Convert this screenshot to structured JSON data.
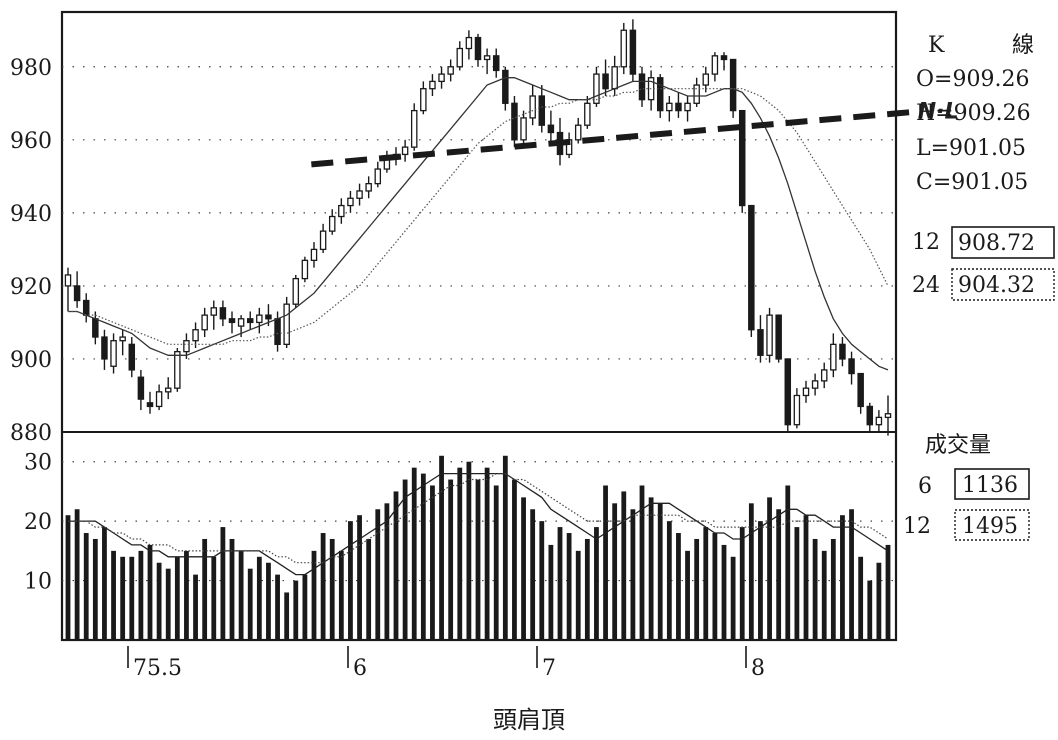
{
  "caption": "頭肩頂",
  "kline_panel": {
    "title_k": "K",
    "title_line": "線",
    "ohlc": [
      "O=909.26",
      "H=909.26",
      "L=901.05",
      "C=901.05"
    ],
    "ma": [
      {
        "period": "12",
        "value": "908.72",
        "box": "solid"
      },
      {
        "period": "24",
        "value": "904.32",
        "box": "dotted"
      }
    ],
    "neckline_label": "N·L"
  },
  "volume_panel": {
    "title": "成交量",
    "ma": [
      {
        "period": "6",
        "value": "1136",
        "box": "solid"
      },
      {
        "period": "12",
        "value": "1495",
        "box": "dotted"
      }
    ]
  },
  "chart_data": [
    {
      "type": "candlestick",
      "title": "",
      "ylim": [
        880,
        995
      ],
      "y_ticks": [
        "980",
        "960",
        "940",
        "920",
        "900",
        "880"
      ],
      "x_ticks": [
        "75.5",
        "6",
        "7",
        "8"
      ],
      "grid": true,
      "candles_ohlc": [
        [
          920,
          925,
          913,
          923
        ],
        [
          920,
          924,
          914,
          916
        ],
        [
          916,
          918,
          910,
          912
        ],
        [
          911,
          913,
          904,
          906
        ],
        [
          906,
          908,
          897,
          900
        ],
        [
          898,
          907,
          896,
          905
        ],
        [
          905,
          908,
          901,
          906
        ],
        [
          904,
          906,
          895,
          897
        ],
        [
          895,
          897,
          886,
          889
        ],
        [
          888,
          891,
          885,
          887
        ],
        [
          887,
          893,
          886,
          891
        ],
        [
          891,
          895,
          889,
          892
        ],
        [
          892,
          903,
          891,
          902
        ],
        [
          902,
          907,
          900,
          905
        ],
        [
          905,
          910,
          903,
          908
        ],
        [
          908,
          914,
          906,
          912
        ],
        [
          912,
          916,
          908,
          914
        ],
        [
          914,
          916,
          909,
          911
        ],
        [
          911,
          913,
          907,
          910
        ],
        [
          909,
          912,
          906,
          911
        ],
        [
          911,
          913,
          908,
          910
        ],
        [
          910,
          914,
          907,
          912
        ],
        [
          912,
          915,
          909,
          911
        ],
        [
          911,
          913,
          902,
          904
        ],
        [
          904,
          917,
          903,
          915
        ],
        [
          915,
          923,
          914,
          922
        ],
        [
          922,
          928,
          921,
          927
        ],
        [
          927,
          932,
          925,
          930
        ],
        [
          930,
          937,
          929,
          935
        ],
        [
          935,
          941,
          934,
          939
        ],
        [
          939,
          944,
          937,
          942
        ],
        [
          942,
          946,
          940,
          944
        ],
        [
          944,
          948,
          942,
          946
        ],
        [
          946,
          950,
          944,
          948
        ],
        [
          948,
          954,
          947,
          952
        ],
        [
          952,
          957,
          951,
          955
        ],
        [
          955,
          958,
          953,
          956
        ],
        [
          956,
          960,
          954,
          958
        ],
        [
          958,
          970,
          957,
          968
        ],
        [
          968,
          976,
          967,
          974
        ],
        [
          974,
          978,
          972,
          976
        ],
        [
          976,
          980,
          974,
          978
        ],
        [
          978,
          982,
          976,
          980
        ],
        [
          980,
          987,
          979,
          985
        ],
        [
          985,
          990,
          982,
          988
        ],
        [
          988,
          989,
          980,
          982
        ],
        [
          982,
          985,
          978,
          983
        ],
        [
          983,
          985,
          977,
          979
        ],
        [
          979,
          980,
          968,
          970
        ],
        [
          970,
          972,
          958,
          960
        ],
        [
          960,
          968,
          958,
          966
        ],
        [
          966,
          975,
          964,
          972
        ],
        [
          972,
          975,
          962,
          964
        ],
        [
          964,
          968,
          959,
          962
        ],
        [
          962,
          966,
          953,
          956
        ],
        [
          956,
          962,
          955,
          960
        ],
        [
          960,
          966,
          959,
          964
        ],
        [
          964,
          972,
          963,
          970
        ],
        [
          970,
          980,
          969,
          978
        ],
        [
          978,
          982,
          972,
          974
        ],
        [
          974,
          983,
          972,
          980
        ],
        [
          980,
          992,
          978,
          990
        ],
        [
          990,
          993,
          976,
          978
        ],
        [
          978,
          980,
          969,
          971
        ],
        [
          971,
          979,
          968,
          977
        ],
        [
          977,
          978,
          966,
          968
        ],
        [
          968,
          972,
          965,
          970
        ],
        [
          970,
          973,
          966,
          968
        ],
        [
          968,
          972,
          965,
          970
        ],
        [
          970,
          977,
          969,
          975
        ],
        [
          975,
          980,
          973,
          978
        ],
        [
          978,
          984,
          976,
          983
        ],
        [
          983,
          984,
          979,
          982
        ],
        [
          982,
          982,
          966,
          968
        ],
        [
          968,
          968,
          940,
          942
        ],
        [
          942,
          942,
          906,
          908
        ],
        [
          908,
          912,
          899,
          901
        ],
        [
          901,
          914,
          899,
          912
        ],
        [
          912,
          912,
          899,
          900
        ],
        [
          900,
          900,
          880,
          882
        ],
        [
          882,
          892,
          881,
          890
        ],
        [
          890,
          894,
          888,
          892
        ],
        [
          892,
          896,
          890,
          894
        ],
        [
          894,
          899,
          892,
          897
        ],
        [
          897,
          907,
          895,
          904
        ],
        [
          904,
          906,
          898,
          900
        ],
        [
          900,
          902,
          893,
          896
        ],
        [
          896,
          896,
          885,
          887
        ],
        [
          887,
          888,
          880,
          882
        ],
        [
          882,
          886,
          880,
          884
        ],
        [
          884,
          890,
          879,
          885
        ]
      ],
      "ma12": [
        913,
        913,
        912,
        911,
        910,
        909,
        908,
        907,
        905,
        903,
        902,
        901,
        901,
        901,
        902,
        903,
        904,
        905,
        906,
        907,
        908,
        909,
        910,
        911,
        912,
        914,
        916,
        918,
        921,
        924,
        927,
        930,
        933,
        936,
        939,
        942,
        945,
        948,
        951,
        954,
        957,
        960,
        963,
        966,
        969,
        972,
        975,
        976,
        977,
        977,
        976,
        975,
        974,
        973,
        972,
        971,
        971,
        971,
        972,
        973,
        974,
        975,
        976,
        976,
        976,
        975,
        974,
        973,
        972,
        972,
        972,
        973,
        974,
        974,
        973,
        970,
        966,
        961,
        955,
        948,
        940,
        932,
        924,
        917,
        911,
        907,
        904,
        902,
        900,
        898,
        897
      ],
      "ma24": [
        913,
        913,
        912,
        912,
        911,
        910,
        909,
        908,
        907,
        906,
        905,
        904,
        904,
        904,
        904,
        904,
        904,
        904,
        905,
        905,
        905,
        906,
        906,
        907,
        907,
        908,
        909,
        910,
        912,
        914,
        916,
        918,
        920,
        923,
        926,
        929,
        932,
        935,
        938,
        941,
        944,
        947,
        950,
        953,
        956,
        959,
        961,
        963,
        965,
        966,
        967,
        968,
        969,
        969,
        970,
        970,
        971,
        971,
        971,
        972,
        972,
        973,
        973,
        974,
        974,
        974,
        974,
        974,
        974,
        974,
        974,
        974,
        974,
        974,
        974,
        973,
        972,
        970,
        968,
        965,
        962,
        958,
        954,
        950,
        946,
        942,
        938,
        934,
        930,
        925,
        920
      ],
      "neckline": [
        {
          "index": 30,
          "value": 953
        },
        {
          "index": 88,
          "value": 967
        }
      ]
    },
    {
      "type": "bar",
      "title": "",
      "ylim": [
        0,
        35
      ],
      "y_ticks": [
        "30",
        "20",
        "10"
      ],
      "x_ticks": [
        "75.5",
        "6",
        "7",
        "8"
      ],
      "grid": true,
      "volumes": [
        21,
        22,
        18,
        17,
        19,
        15,
        14,
        14,
        15,
        16,
        13,
        12,
        14,
        15,
        11,
        17,
        14,
        19,
        17,
        15,
        12,
        14,
        13,
        11,
        8,
        10,
        11,
        15,
        18,
        17,
        15,
        20,
        21,
        17,
        22,
        23,
        25,
        27,
        29,
        28,
        26,
        31,
        27,
        29,
        30,
        27,
        29,
        26,
        31,
        27,
        24,
        22,
        20,
        16,
        19,
        18,
        15,
        17,
        19,
        26,
        23,
        25,
        22,
        26,
        24,
        23,
        20,
        18,
        15,
        17,
        19,
        18,
        16,
        14,
        19,
        23,
        20,
        24,
        22,
        26,
        19,
        21,
        17,
        15,
        17,
        21,
        22,
        14,
        10,
        13,
        16
      ],
      "vol_ma6": [
        20,
        20,
        20,
        20,
        19,
        18,
        17,
        16,
        16,
        15,
        15,
        14,
        14,
        14,
        14,
        14,
        14,
        15,
        15,
        15,
        15,
        15,
        14,
        13,
        12,
        11,
        11,
        12,
        13,
        14,
        15,
        16,
        17,
        18,
        19,
        20,
        22,
        24,
        25,
        26,
        27,
        28,
        28,
        28,
        28,
        28,
        28,
        28,
        28,
        27,
        26,
        25,
        24,
        22,
        21,
        20,
        19,
        18,
        17,
        18,
        19,
        20,
        21,
        22,
        23,
        23,
        23,
        22,
        21,
        20,
        19,
        18,
        18,
        17,
        17,
        18,
        19,
        20,
        21,
        22,
        22,
        21,
        21,
        20,
        19,
        19,
        19,
        18,
        17,
        16,
        15
      ],
      "vol_ma12": [
        20,
        20,
        20,
        19,
        19,
        18,
        18,
        17,
        17,
        16,
        16,
        16,
        15,
        15,
        15,
        15,
        15,
        15,
        15,
        15,
        15,
        15,
        15,
        14,
        14,
        13,
        13,
        13,
        13,
        14,
        14,
        15,
        16,
        17,
        18,
        19,
        20,
        21,
        22,
        23,
        24,
        25,
        26,
        26,
        27,
        27,
        27,
        28,
        28,
        27,
        27,
        26,
        25,
        24,
        23,
        22,
        21,
        20,
        20,
        20,
        20,
        20,
        21,
        21,
        21,
        21,
        21,
        21,
        20,
        20,
        20,
        19,
        19,
        19,
        19,
        19,
        19,
        19,
        19,
        20,
        20,
        20,
        20,
        20,
        20,
        20,
        20,
        19,
        19,
        18,
        17
      ]
    }
  ]
}
